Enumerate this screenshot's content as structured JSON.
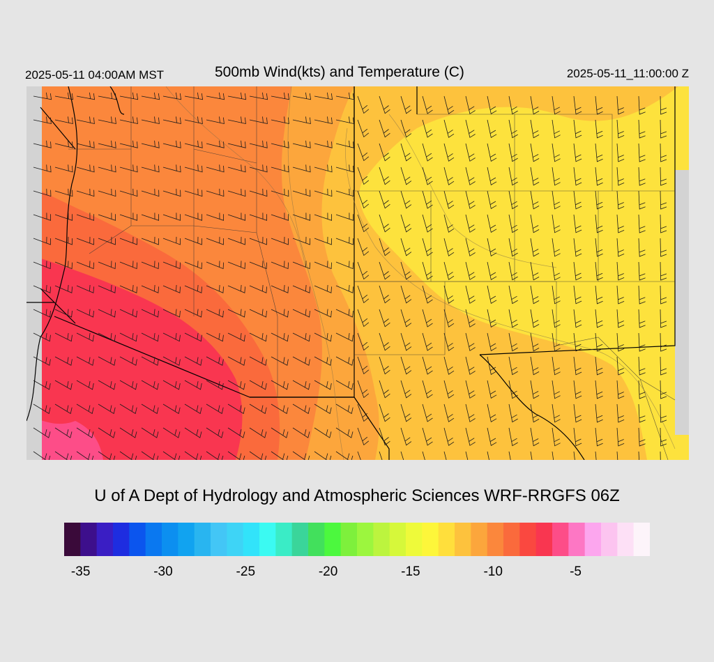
{
  "header": {
    "local_time": "2025-05-11 04:00AM MST",
    "title": "500mb Wind(kts) and Temperature (C)",
    "valid_time": "2025-05-11_11:00:00 Z"
  },
  "credit": "U of A Dept of Hydrology and Atmospheric Sciences WRF-RRGFS 06Z",
  "colorbar": {
    "colors": [
      "#3a0a3a",
      "#3d0f8c",
      "#3a1ec4",
      "#1e2de0",
      "#0b55ee",
      "#0a78f0",
      "#0c8ff0",
      "#11a3f0",
      "#29b5f0",
      "#43c6f6",
      "#3ed4f6",
      "#32e3fa",
      "#3bfaf2",
      "#3aecc6",
      "#3ad59a",
      "#42e05c",
      "#4cf83e",
      "#7ef03c",
      "#9cf63e",
      "#bcf43e",
      "#d6f83a",
      "#eefa3a",
      "#fdf63a",
      "#ffdf3c",
      "#fdc23d",
      "#fca63c",
      "#fb873c",
      "#fa6a3c",
      "#fa4840",
      "#f93650",
      "#fd4d88",
      "#fd77c4",
      "#fca6ee",
      "#fcc4f0",
      "#fde0f6",
      "#fdf4fa"
    ],
    "ticks": [
      "-35",
      "-30",
      "-25",
      "-20",
      "-15",
      "-10",
      "-5"
    ],
    "tick_values": [
      -35,
      -30,
      -25,
      -20,
      -15,
      -10,
      -5
    ],
    "min": -36,
    "max": -0.5
  },
  "map": {
    "temperature_colors": {
      "very_cold": "#fd4d88",
      "cold": "#f93650",
      "cool": "#fa4840",
      "mid": "#fb873c",
      "mild": "#fca63c",
      "warm": "#fdc23d",
      "warmest": "#fde23d"
    },
    "border_color": "#000000",
    "contour_color": "#7a6a4a",
    "nodata_color": "#d3d3d3"
  }
}
